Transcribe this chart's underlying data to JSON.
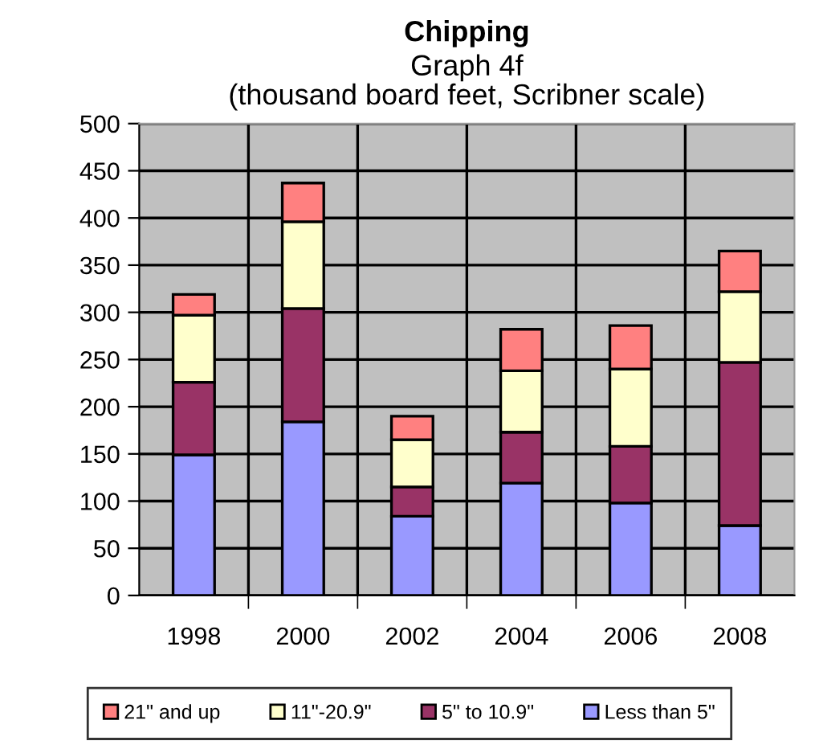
{
  "chart_data": {
    "type": "bar",
    "title": "Chipping",
    "subtitle": "Graph 4f\n(thousand board feet, Scribner scale)",
    "categories": [
      "1998",
      "2000",
      "2002",
      "2004",
      "2006",
      "2008"
    ],
    "stacked": true,
    "series": [
      {
        "name": "Less than 5\"",
        "color": "#9999ff",
        "values": [
          149,
          184,
          84,
          119,
          98,
          74
        ]
      },
      {
        "name": "5\" to 10.9\"",
        "color": "#993366",
        "values": [
          77,
          120,
          31,
          54,
          60,
          173
        ]
      },
      {
        "name": "11\"-20.9\"",
        "color": "#ffffcc",
        "values": [
          71,
          92,
          50,
          65,
          82,
          75
        ]
      },
      {
        "name": "21\" and up",
        "color": "#ff8080",
        "values": [
          22,
          41,
          25,
          44,
          46,
          43
        ]
      }
    ],
    "ylim": [
      0,
      500
    ],
    "yticks": [
      0,
      50,
      100,
      150,
      200,
      250,
      300,
      350,
      400,
      450,
      500
    ],
    "grid": true,
    "legend": "bottom"
  }
}
